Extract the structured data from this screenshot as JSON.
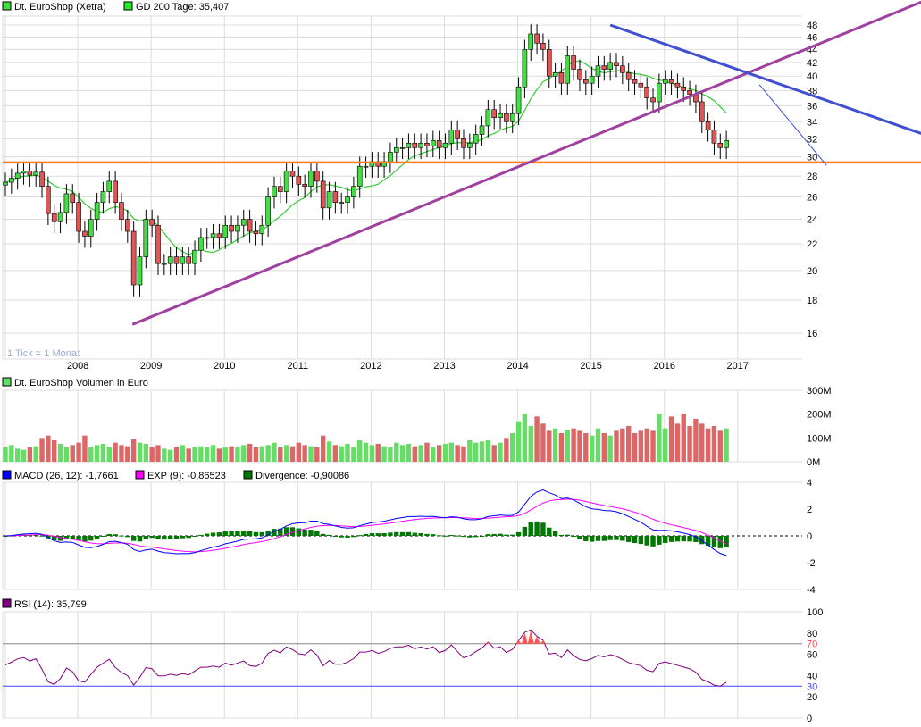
{
  "legends": {
    "price": "Dt. EuroShop (Xetra)",
    "gd200": "GD 200 Tage: 35,407",
    "volume": "Dt. EuroShop Volumen in Euro",
    "macd": "MACD (26, 12): -1,7661",
    "exp": "EXP (9): -0,86523",
    "divergence": "Divergence: -0,90086",
    "rsi": "RSI (14): 35,799"
  },
  "tick_note": "1 Tick = 1 Monat",
  "colors": {
    "up": "#44dd44",
    "down": "#e05555",
    "gd200": "#33cc33",
    "vol_up": "#66dd66",
    "vol_down": "#dd6666",
    "macd": "#0000ff",
    "exp": "#ff00ff",
    "divergence": "#007700",
    "rsi": "#800080",
    "support": "#ff7f27",
    "trend_up": "#a040a0",
    "trend_down": "#4050d0"
  },
  "chart_data": [
    {
      "type": "candlestick",
      "title": "Dt. EuroShop (Xetra)",
      "scale": "log",
      "ylim": [
        15,
        49
      ],
      "y_ticks": [
        "16",
        "18",
        "20",
        "22",
        "24",
        "26",
        "28",
        "30",
        "32",
        "34",
        "36",
        "38",
        "40",
        "42",
        "44",
        "46",
        "48"
      ],
      "x_labels": [
        "2008",
        "2009",
        "2010",
        "2011",
        "2012",
        "2013",
        "2014",
        "2015",
        "2016",
        "2017"
      ],
      "first_month": "2007-01",
      "close": [
        27.4,
        27.8,
        28.3,
        28.5,
        28.1,
        28.4,
        27.0,
        24.5,
        23.8,
        24.6,
        26.3,
        25.5,
        23.0,
        22.6,
        24.0,
        25.5,
        26.5,
        27.5,
        25.5,
        24.0,
        23.0,
        19.0,
        21.0,
        24.0,
        23.5,
        20.5,
        20.5,
        21.0,
        20.5,
        21.0,
        20.5,
        21.5,
        22.5,
        22.5,
        22.8,
        22.5,
        23.5,
        23.0,
        23.5,
        24.0,
        23.0,
        22.8,
        23.5,
        26.0,
        27.0,
        26.5,
        28.5,
        28.0,
        27.2,
        27.0,
        28.5,
        27.5,
        25.0,
        26.5,
        25.5,
        25.5,
        26.0,
        27.0,
        29.0,
        29.0,
        29.5,
        29.0,
        29.5,
        30.5,
        31.0,
        31.0,
        31.5,
        31.0,
        31.5,
        31.2,
        31.8,
        31.0,
        31.5,
        33.0,
        32.0,
        31.0,
        31.5,
        32.5,
        33.5,
        35.5,
        34.5,
        35.0,
        34.0,
        35.0,
        38.5,
        44.0,
        46.5,
        45.0,
        44.0,
        40.0,
        40.5,
        39.0,
        43.0,
        41.0,
        39.5,
        39.0,
        40.0,
        41.5,
        41.0,
        42.0,
        41.5,
        40.5,
        39.5,
        39.0,
        38.5,
        37.0,
        36.5,
        39.0,
        39.5,
        39.0,
        38.5,
        38.0,
        37.5,
        36.5,
        34.0,
        33.0,
        31.5,
        31.0,
        31.8
      ],
      "volume_M": [
        60,
        70,
        55,
        50,
        60,
        65,
        100,
        110,
        90,
        75,
        60,
        70,
        80,
        110,
        60,
        70,
        75,
        60,
        80,
        70,
        65,
        95,
        80,
        75,
        60,
        70,
        55,
        50,
        60,
        70,
        55,
        60,
        65,
        60,
        70,
        55,
        60,
        65,
        60,
        70,
        75,
        60,
        65,
        70,
        80,
        60,
        70,
        65,
        80,
        70,
        65,
        60,
        110,
        85,
        70,
        65,
        75,
        60,
        90,
        80,
        70,
        75,
        65,
        60,
        80,
        70,
        75,
        65,
        70,
        80,
        60,
        70,
        75,
        80,
        70,
        65,
        90,
        80,
        85,
        90,
        70,
        80,
        100,
        120,
        170,
        200,
        150,
        190,
        160,
        130,
        140,
        120,
        135,
        140,
        130,
        120,
        110,
        140,
        120,
        110,
        130,
        140,
        150,
        120,
        130,
        140,
        130,
        200,
        140,
        190,
        160,
        200,
        150,
        180,
        160,
        140,
        150,
        130,
        140
      ],
      "gd200_last": 35.407,
      "support_level": 29.4,
      "trendlines": [
        {
          "name": "uptrend",
          "from": {
            "month_index": 20.8,
            "price": 16.5
          },
          "to": {
            "month_index": 149.9,
            "price": 52.1
          }
        },
        {
          "name": "downtrend",
          "from": {
            "month_index": 99,
            "price": 48.0
          },
          "to": {
            "month_index": 149.9,
            "price": 32.6
          }
        },
        {
          "name": "short-downtrend",
          "from": {
            "month_index": 123.4,
            "price": 38.8
          },
          "to": {
            "month_index": 134.4,
            "price": 29.1
          }
        }
      ]
    },
    {
      "type": "bar",
      "title": "Dt. EuroShop Volumen in Euro",
      "y_ticks": [
        "300M",
        "200M",
        "100M",
        "0M"
      ],
      "ylim": [
        0,
        300
      ]
    },
    {
      "type": "line",
      "title": "MACD",
      "y_ticks": [
        "4",
        "2",
        "0",
        "-2",
        "-4"
      ],
      "ylim": [
        -4,
        4
      ]
    },
    {
      "type": "line",
      "title": "RSI (14)",
      "y_ticks": [
        "100",
        "80",
        "70",
        "60",
        "40",
        "30",
        "20",
        "0"
      ],
      "ylim": [
        0,
        100
      ],
      "levels": [
        70,
        30
      ]
    }
  ]
}
